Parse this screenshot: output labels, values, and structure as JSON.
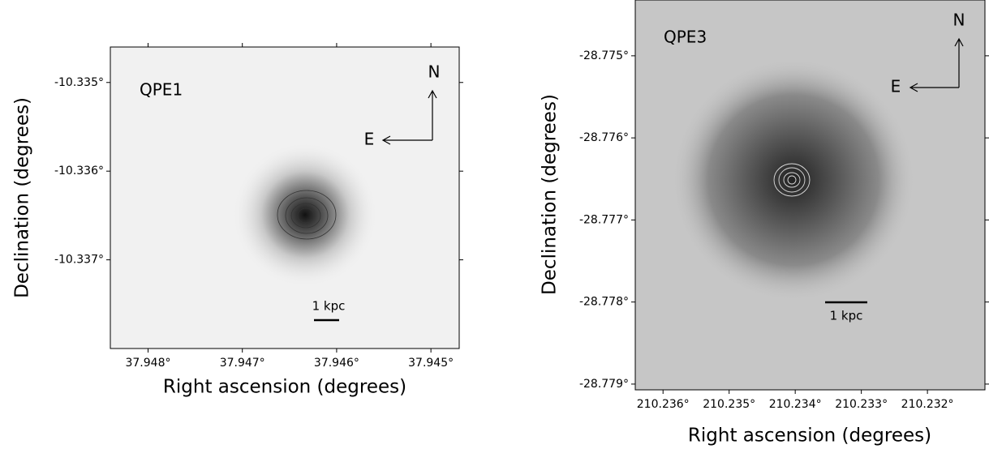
{
  "chart_data": [
    {
      "type": "image",
      "title": "QPE1",
      "x_label": "Right ascension (degrees)",
      "y_label": "Declination (degrees)",
      "xlim": [
        37.9484,
        37.9447
      ],
      "ylim": [
        -10.338,
        -10.3346
      ],
      "xticks": [
        {
          "value": 37.948,
          "label": "37.948°"
        },
        {
          "value": 37.947,
          "label": "37.947°"
        },
        {
          "value": 37.946,
          "label": "37.946°"
        },
        {
          "value": 37.945,
          "label": "37.945°"
        }
      ],
      "yticks": [
        {
          "value": -10.335,
          "label": "-10.335°"
        },
        {
          "value": -10.336,
          "label": "-10.336°"
        },
        {
          "value": -10.337,
          "label": "-10.337°"
        }
      ],
      "annotations": [
        "N",
        "E",
        "1 kpc"
      ]
    },
    {
      "type": "image",
      "title": "QPE3",
      "x_label": "Right ascension (degrees)",
      "y_label": "Declination (degrees)",
      "xlim": [
        210.23642,
        210.23113
      ],
      "ylim": [
        -28.77907,
        -28.77432
      ],
      "xticks": [
        {
          "value": 210.236,
          "label": "210.236°"
        },
        {
          "value": 210.235,
          "label": "210.235°"
        },
        {
          "value": 210.234,
          "label": "210.234°"
        },
        {
          "value": 210.233,
          "label": "210.233°"
        },
        {
          "value": 210.232,
          "label": "210.232°"
        }
      ],
      "yticks": [
        {
          "value": -28.775,
          "label": "-28.775°"
        },
        {
          "value": -28.776,
          "label": "-28.776°"
        },
        {
          "value": -28.777,
          "label": "-28.777°"
        },
        {
          "value": -28.778,
          "label": "-28.778°"
        },
        {
          "value": -28.779,
          "label": "-28.779°"
        }
      ],
      "annotations": [
        "N",
        "E",
        "1 kpc"
      ]
    }
  ]
}
